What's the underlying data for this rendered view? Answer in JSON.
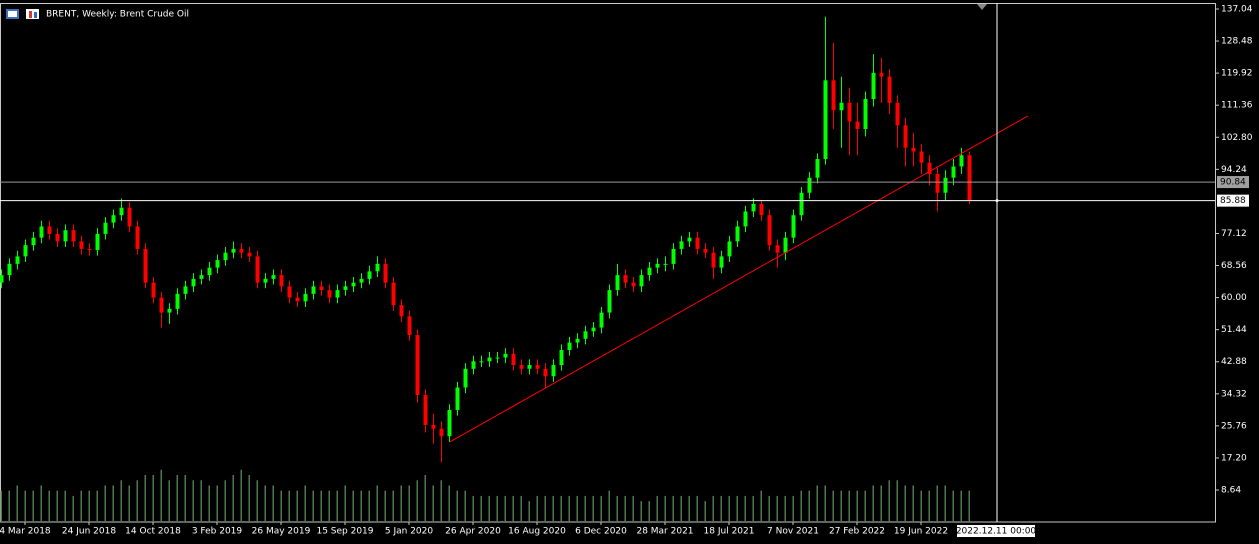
{
  "chart_data": {
    "type": "candlestick",
    "title": "BRENT, Weekly:  Brent Crude Oil",
    "categories": [
      null,
      null,
      null,
      "4 Mar 2018",
      null,
      null,
      null,
      null,
      null,
      null,
      null,
      "24 Jun 2018",
      null,
      null,
      null,
      null,
      null,
      null,
      null,
      "14 Oct 2018",
      null,
      null,
      null,
      null,
      null,
      null,
      null,
      "3 Feb 2019",
      null,
      null,
      null,
      null,
      null,
      null,
      null,
      "26 May 2019",
      null,
      null,
      null,
      null,
      null,
      null,
      null,
      "15 Sep 2019",
      null,
      null,
      null,
      null,
      null,
      null,
      null,
      "5 Jan 2020",
      null,
      null,
      null,
      null,
      null,
      null,
      null,
      "26 Apr 2020",
      null,
      null,
      null,
      null,
      null,
      null,
      null,
      "16 Aug 2020",
      null,
      null,
      null,
      null,
      null,
      null,
      null,
      "6 Dec 2020",
      null,
      null,
      null,
      null,
      null,
      null,
      null,
      "28 Mar 2021",
      null,
      null,
      null,
      null,
      null,
      null,
      null,
      "18 Jul 2021",
      null,
      null,
      null,
      null,
      null,
      null,
      null,
      "7 Nov 2021",
      null,
      null,
      null,
      null,
      null,
      null,
      null,
      "27 Feb 2022",
      null,
      null,
      null,
      null,
      null,
      null,
      null,
      "19 Jun 2022",
      null,
      null,
      null,
      null,
      null,
      null
    ],
    "open": [
      64,
      66,
      69,
      71,
      74,
      76,
      79,
      77,
      75,
      78,
      75,
      73,
      72.7,
      77,
      80,
      82,
      84,
      79,
      73,
      64,
      60,
      56,
      57,
      61,
      63,
      65,
      66,
      68,
      70,
      72,
      73,
      72,
      71,
      64,
      65,
      66,
      63,
      60,
      59,
      61,
      63,
      62,
      60,
      62,
      63,
      64,
      65,
      67,
      69,
      64,
      58,
      55,
      50,
      34,
      26,
      25,
      23,
      30,
      36,
      41,
      43,
      43,
      44,
      44,
      45,
      42,
      41,
      42,
      41,
      39,
      42,
      46,
      48,
      49,
      51,
      52,
      56,
      62,
      66,
      64,
      63,
      66,
      68,
      69,
      69,
      73,
      75,
      76,
      73,
      72,
      68,
      71,
      75,
      79,
      83,
      85,
      82,
      74,
      72,
      76,
      82,
      88,
      92,
      97,
      118,
      110,
      112,
      107,
      105,
      113,
      120,
      119,
      112,
      106,
      100,
      99,
      96,
      93,
      88,
      92,
      95,
      98
    ],
    "high": [
      67.5,
      70.5,
      72.5,
      75.5,
      77.5,
      80.5,
      80.5,
      78.5,
      79.5,
      79.5,
      76.5,
      74.5,
      78.5,
      81.5,
      83.5,
      86.5,
      85.5,
      80.5,
      74.5,
      65.5,
      61.5,
      58.5,
      62.5,
      64.5,
      66.5,
      67.5,
      69.5,
      71.5,
      73.5,
      75,
      74.5,
      73.5,
      72.5,
      66.5,
      67.5,
      67.5,
      64.5,
      61.5,
      62.5,
      64.5,
      64.5,
      63.5,
      63.5,
      64.5,
      65.5,
      66.5,
      68.5,
      71,
      70.5,
      65.5,
      59.5,
      56.5,
      51.5,
      35.5,
      29,
      27,
      31.5,
      37.5,
      42.5,
      44.5,
      44.5,
      45.5,
      45.5,
      46.5,
      46.5,
      43.5,
      43.5,
      43.5,
      42.5,
      43.5,
      47.5,
      49.5,
      50.5,
      52.5,
      53.5,
      57.5,
      63.5,
      69,
      67.5,
      65.5,
      67.5,
      69.5,
      70.5,
      71,
      74.5,
      76.5,
      77.5,
      77.5,
      74.5,
      73.5,
      72.5,
      76.5,
      80.5,
      84.5,
      86.5,
      86,
      83.5,
      75.5,
      77.5,
      83.5,
      89.5,
      93.5,
      98.5,
      135,
      128,
      119,
      116,
      112,
      115,
      125,
      124,
      121,
      114,
      108,
      104,
      101,
      98,
      95,
      94,
      97,
      100,
      99
    ],
    "low": [
      62.5,
      64.5,
      67.5,
      69.5,
      72.5,
      74.5,
      75.5,
      73.5,
      73.5,
      73.5,
      71.5,
      71.2,
      71.2,
      75.5,
      78.5,
      80.5,
      77.5,
      71.5,
      62.5,
      58.5,
      52,
      53,
      55.5,
      59.5,
      61.5,
      63.5,
      64.5,
      66.5,
      68.5,
      70.5,
      70.5,
      69.5,
      62.5,
      62.5,
      63.5,
      61.5,
      58.5,
      57.5,
      57.5,
      59.5,
      60.5,
      58.5,
      58.5,
      60.5,
      61.5,
      62.5,
      63.5,
      65.5,
      62.5,
      56.5,
      53.5,
      48.5,
      32,
      24,
      21,
      16,
      21.5,
      28.5,
      34.5,
      39.5,
      41.5,
      41.5,
      42.5,
      42.5,
      40.5,
      39.5,
      39.5,
      39.5,
      36,
      37.5,
      40.5,
      44.5,
      46.5,
      47.5,
      49.5,
      50.5,
      54.5,
      60.5,
      62.5,
      61.5,
      61.5,
      64.5,
      66.5,
      67,
      67.5,
      71.5,
      73.5,
      71.5,
      70.5,
      65,
      66.5,
      69.5,
      73.5,
      77.5,
      81.5,
      80.5,
      72.5,
      68,
      70,
      74.5,
      80.5,
      86.5,
      90.5,
      95.5,
      105,
      100,
      98,
      98,
      103,
      111,
      112,
      109,
      100,
      95,
      95,
      93,
      90,
      83,
      86,
      90,
      93,
      85
    ],
    "close": [
      66,
      69,
      71,
      74,
      76,
      79,
      77,
      75,
      78,
      75,
      73,
      72.7,
      77,
      80,
      82,
      84,
      79,
      73,
      64,
      60,
      56,
      57,
      61,
      63,
      65,
      66,
      68,
      70,
      72,
      73,
      72,
      71,
      64,
      65,
      66,
      63,
      60,
      59,
      61,
      63,
      62,
      60,
      62,
      63,
      64,
      65,
      67,
      69,
      64,
      58,
      55,
      50,
      34,
      26,
      25,
      23,
      30,
      36,
      41,
      43,
      43,
      44,
      44,
      45,
      42,
      41,
      42,
      41,
      39,
      42,
      46,
      48,
      49,
      51,
      52,
      56,
      62,
      66,
      64,
      63,
      66,
      68,
      69,
      69,
      73,
      75,
      76,
      73,
      72,
      68,
      71,
      75,
      79,
      83,
      85,
      82,
      74,
      72,
      76,
      82,
      88,
      92,
      97,
      118,
      110,
      112,
      107,
      105,
      113,
      120,
      119,
      112,
      106,
      100,
      99,
      96,
      93,
      88,
      92,
      95,
      98,
      86
    ],
    "volume": [
      6,
      6,
      7,
      6,
      6,
      7,
      6,
      6,
      6,
      5,
      6,
      6,
      6,
      7,
      7,
      8,
      7,
      8,
      9,
      9,
      10,
      8,
      9,
      9,
      8,
      8,
      7,
      7,
      8,
      9,
      10,
      9,
      8,
      7,
      7,
      6,
      6,
      6,
      7,
      6,
      6,
      6,
      6,
      7,
      6,
      6,
      6,
      7,
      6,
      6,
      7,
      7,
      8,
      9,
      7,
      8,
      7,
      6,
      6,
      5,
      5,
      5,
      5,
      5,
      5,
      5,
      4,
      5,
      5,
      5,
      5,
      5,
      5,
      5,
      5,
      5,
      6,
      5,
      5,
      5,
      4,
      4,
      5,
      5,
      5,
      5,
      5,
      5,
      4,
      5,
      5,
      5,
      5,
      5,
      5,
      6,
      5,
      5,
      5,
      5,
      6,
      6,
      7,
      7,
      6,
      6,
      6,
      6,
      6,
      7,
      7,
      8,
      8,
      7,
      7,
      6,
      6,
      7,
      7,
      6,
      6,
      6
    ],
    "ylim": [
      0.1,
      139.44
    ],
    "y2lim": [
      0,
      100
    ],
    "yticks": [
      8.64,
      {
        "value": 17.2,
        "label": "17.20"
      },
      25.76,
      34.32,
      42.88,
      51.44,
      {
        "value": 60,
        "label": "60.00"
      },
      68.56,
      77.12,
      94.24,
      {
        "value": 102.8,
        "label": "102.80"
      },
      111.36,
      119.92,
      128.48,
      137.04
    ],
    "up_color": "#00ff00",
    "down_color": "#ff0000",
    "volume_color": "#4f7a4f",
    "current_price": 90.84,
    "crosshair": {
      "price": 85.88,
      "time": "2022.12.11 00:00"
    },
    "trendline": {
      "start": 21.5,
      "end": 108.5,
      "color": "#ff0000"
    }
  }
}
